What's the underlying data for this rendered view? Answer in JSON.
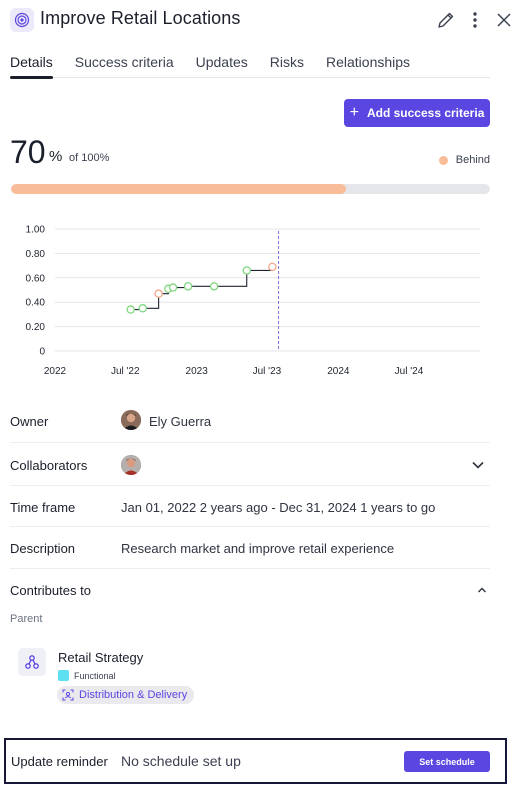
{
  "header": {
    "title": "Improve Retail Locations",
    "icons": {
      "goal": "target-icon",
      "edit": "pencil-icon",
      "more": "more-vertical-icon",
      "close": "close-icon"
    }
  },
  "tabs": [
    {
      "label": "Details",
      "active": true
    },
    {
      "label": "Success criteria",
      "active": false
    },
    {
      "label": "Updates",
      "active": false
    },
    {
      "label": "Risks",
      "active": false
    },
    {
      "label": "Relationships",
      "active": false
    }
  ],
  "add_button": {
    "label": "Add success criteria",
    "icon": "plus-icon"
  },
  "progress": {
    "value": "70",
    "percent_symbol": "%",
    "of_label": "of 100%",
    "status": "Behind",
    "status_color": "#f9bc98",
    "fraction": 0.7
  },
  "chart_data": {
    "type": "line",
    "y_ticks": [
      "1.00",
      "0.80",
      "0.60",
      "0.40",
      "0.20",
      "0"
    ],
    "x_ticks": [
      "2022",
      "Jul '22",
      "2023",
      "Jul '23",
      "2024",
      "Jul '24"
    ],
    "ylim": [
      0,
      1
    ],
    "xlim": [
      "2022-01-01",
      "2024-12-31"
    ],
    "grid": true,
    "today_marker": "2023-07-31",
    "line_color": "#1f2430",
    "points": [
      {
        "x": "2022-07-15",
        "y": 0.34,
        "status": "on-track"
      },
      {
        "x": "2022-08-15",
        "y": 0.35,
        "status": "on-track"
      },
      {
        "x": "2022-09-25",
        "y": 0.47,
        "status": "behind"
      },
      {
        "x": "2022-10-20",
        "y": 0.51,
        "status": "on-track"
      },
      {
        "x": "2022-11-01",
        "y": 0.52,
        "status": "on-track"
      },
      {
        "x": "2022-12-10",
        "y": 0.53,
        "status": "on-track"
      },
      {
        "x": "2023-02-15",
        "y": 0.53,
        "status": "on-track"
      },
      {
        "x": "2023-05-10",
        "y": 0.66,
        "status": "on-track"
      },
      {
        "x": "2023-07-15",
        "y": 0.69,
        "status": "behind"
      }
    ],
    "colors": {
      "on-track": "#7fd67f",
      "behind": "#f4a88c",
      "marker": "#7b6fe0"
    }
  },
  "fields": {
    "owner": {
      "label": "Owner",
      "value": "Ely Guerra"
    },
    "collaborators": {
      "label": "Collaborators"
    },
    "time_frame": {
      "label": "Time frame",
      "value": "Jan 01, 2022 2 years ago - Dec 31, 2024 1 years to go"
    },
    "description": {
      "label": "Description",
      "value": "Research market and improve retail experience"
    },
    "contributes_to": {
      "label": "Contributes to"
    }
  },
  "parent": {
    "label": "Parent",
    "name": "Retail Strategy",
    "type": "Functional",
    "type_color": "#5ce0f2",
    "tag": "Distribution & Delivery"
  },
  "reminder": {
    "label": "Update reminder",
    "value": "No schedule set up",
    "button": "Set schedule"
  }
}
